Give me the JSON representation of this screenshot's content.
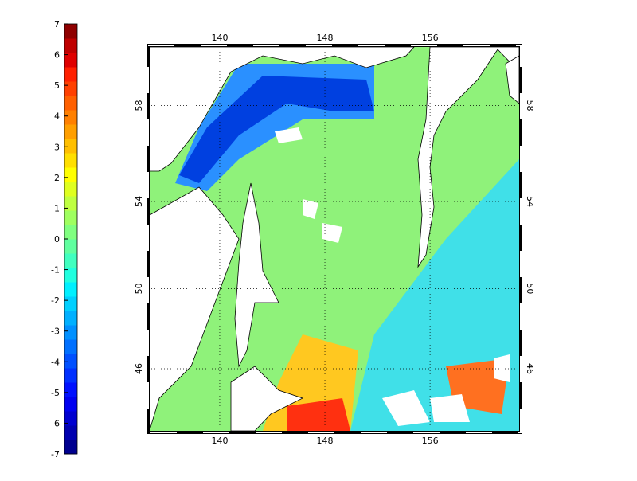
{
  "colorbar": {
    "ticks": [
      -7,
      -6,
      -5,
      -4,
      -3,
      -2,
      -1,
      0,
      1,
      2,
      3,
      4,
      5,
      6,
      7
    ],
    "colors": [
      "#00008f",
      "#0000b0",
      "#0000d0",
      "#0000f0",
      "#0010ff",
      "#0030ff",
      "#0050ff",
      "#0070ff",
      "#0090ff",
      "#00b0ff",
      "#00d0ff",
      "#00f0ff",
      "#20ffdf",
      "#40ffbf",
      "#60ff9f",
      "#80ff80",
      "#9fff60",
      "#bfff40",
      "#dfff20",
      "#ffff00",
      "#ffdf00",
      "#ffbf00",
      "#ff9f00",
      "#ff8000",
      "#ff6000",
      "#ff4000",
      "#ff2000",
      "#df0000",
      "#bf0000",
      "#8f0000"
    ]
  },
  "map": {
    "lon_ticks": [
      140,
      148,
      156
    ],
    "lat_ticks": [
      46,
      50,
      54,
      58
    ]
  }
}
